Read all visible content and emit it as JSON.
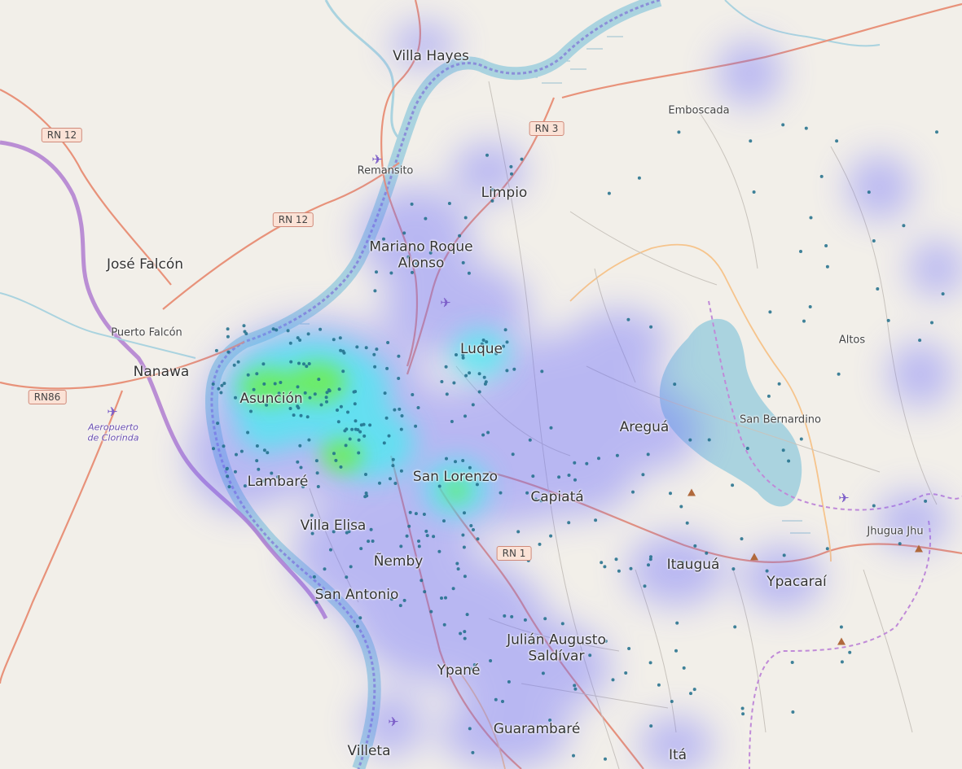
{
  "map": {
    "places": [
      {
        "id": "villa-hayes",
        "name": "Villa Hayes",
        "kind": "town"
      },
      {
        "id": "emboscada",
        "name": "Emboscada",
        "kind": "village"
      },
      {
        "id": "remansito",
        "name": "Remansito",
        "kind": "village"
      },
      {
        "id": "limpio",
        "name": "Limpio",
        "kind": "town"
      },
      {
        "id": "mariano-roque-alonso",
        "name": "Mariano Roque\nAlonso",
        "kind": "town"
      },
      {
        "id": "jose-falcon",
        "name": "José Falcón",
        "kind": "town"
      },
      {
        "id": "puerto-falcon",
        "name": "Puerto Falcón",
        "kind": "village"
      },
      {
        "id": "nanawa",
        "name": "Nanawa",
        "kind": "town"
      },
      {
        "id": "aeropuerto-clorinda",
        "name": "Aeropuerto\nde Clorinda",
        "kind": "airport"
      },
      {
        "id": "luque",
        "name": "Luque",
        "kind": "town"
      },
      {
        "id": "asuncion",
        "name": "Asunción",
        "kind": "town"
      },
      {
        "id": "altos",
        "name": "Altos",
        "kind": "village"
      },
      {
        "id": "aregua",
        "name": "Areguá",
        "kind": "town"
      },
      {
        "id": "san-bernardino",
        "name": "San Bernardino",
        "kind": "village"
      },
      {
        "id": "lambare",
        "name": "Lambaré",
        "kind": "town"
      },
      {
        "id": "san-lorenzo",
        "name": "San Lorenzo",
        "kind": "town"
      },
      {
        "id": "capiata",
        "name": "Capiatá",
        "kind": "town"
      },
      {
        "id": "villa-elisa",
        "name": "Villa Elisa",
        "kind": "town"
      },
      {
        "id": "jhugua-jhu",
        "name": "Jhugua Jhu",
        "kind": "village"
      },
      {
        "id": "nemby",
        "name": "Ñemby",
        "kind": "town"
      },
      {
        "id": "itaugua",
        "name": "Itauguá",
        "kind": "town"
      },
      {
        "id": "ypacarai",
        "name": "Ypacaraí",
        "kind": "town"
      },
      {
        "id": "san-antonio",
        "name": "San Antonio",
        "kind": "town"
      },
      {
        "id": "julian-augusto-saldivar",
        "name": "Julián Augusto\nSaldívar",
        "kind": "town"
      },
      {
        "id": "ypane",
        "name": "Ypané",
        "kind": "town"
      },
      {
        "id": "guarambare",
        "name": "Guarambaré",
        "kind": "town"
      },
      {
        "id": "villeta",
        "name": "Villeta",
        "kind": "town"
      },
      {
        "id": "ita",
        "name": "Itá",
        "kind": "town"
      }
    ],
    "road_shields": [
      {
        "id": "rn12-north",
        "label": "RN 12"
      },
      {
        "id": "rn3",
        "label": "RN 3"
      },
      {
        "id": "rn12-south",
        "label": "RN 12"
      },
      {
        "id": "rn86",
        "label": "RN86"
      },
      {
        "id": "rn1",
        "label": "RN 1"
      }
    ],
    "colors": {
      "land": "#f2efe9",
      "water": "#aad3df",
      "major_road": "#e8927a",
      "secondary_road": "#f6c48c",
      "minor_road": "#c8c3bc",
      "border": "#b07cd0",
      "heat_low": "#6a6cff",
      "heat_mid": "#3ff0f0",
      "heat_high": "#6ff03a",
      "point": "#1f6e8a"
    },
    "icons": [
      "airport-icon",
      "peak-icon",
      "heat-point-marker"
    ]
  }
}
